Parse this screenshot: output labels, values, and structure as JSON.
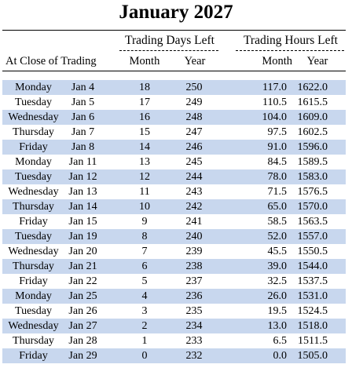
{
  "title": "January 2027",
  "group_days": "Trading Days Left",
  "group_hours": "Trading Hours Left",
  "row_label_header": "At Close of Trading",
  "col_month": "Month",
  "col_year": "Year",
  "rows": [
    {
      "day": "Monday",
      "date": "Jan 4",
      "days_month": "18",
      "days_year": "250",
      "hours_month": "117.0",
      "hours_year": "1622.0"
    },
    {
      "day": "Tuesday",
      "date": "Jan 5",
      "days_month": "17",
      "days_year": "249",
      "hours_month": "110.5",
      "hours_year": "1615.5"
    },
    {
      "day": "Wednesday",
      "date": "Jan 6",
      "days_month": "16",
      "days_year": "248",
      "hours_month": "104.0",
      "hours_year": "1609.0"
    },
    {
      "day": "Thursday",
      "date": "Jan 7",
      "days_month": "15",
      "days_year": "247",
      "hours_month": "97.5",
      "hours_year": "1602.5"
    },
    {
      "day": "Friday",
      "date": "Jan 8",
      "days_month": "14",
      "days_year": "246",
      "hours_month": "91.0",
      "hours_year": "1596.0"
    },
    {
      "day": "Monday",
      "date": "Jan 11",
      "days_month": "13",
      "days_year": "245",
      "hours_month": "84.5",
      "hours_year": "1589.5"
    },
    {
      "day": "Tuesday",
      "date": "Jan 12",
      "days_month": "12",
      "days_year": "244",
      "hours_month": "78.0",
      "hours_year": "1583.0"
    },
    {
      "day": "Wednesday",
      "date": "Jan 13",
      "days_month": "11",
      "days_year": "243",
      "hours_month": "71.5",
      "hours_year": "1576.5"
    },
    {
      "day": "Thursday",
      "date": "Jan 14",
      "days_month": "10",
      "days_year": "242",
      "hours_month": "65.0",
      "hours_year": "1570.0"
    },
    {
      "day": "Friday",
      "date": "Jan 15",
      "days_month": "9",
      "days_year": "241",
      "hours_month": "58.5",
      "hours_year": "1563.5"
    },
    {
      "day": "Tuesday",
      "date": "Jan 19",
      "days_month": "8",
      "days_year": "240",
      "hours_month": "52.0",
      "hours_year": "1557.0"
    },
    {
      "day": "Wednesday",
      "date": "Jan 20",
      "days_month": "7",
      "days_year": "239",
      "hours_month": "45.5",
      "hours_year": "1550.5"
    },
    {
      "day": "Thursday",
      "date": "Jan 21",
      "days_month": "6",
      "days_year": "238",
      "hours_month": "39.0",
      "hours_year": "1544.0"
    },
    {
      "day": "Friday",
      "date": "Jan 22",
      "days_month": "5",
      "days_year": "237",
      "hours_month": "32.5",
      "hours_year": "1537.5"
    },
    {
      "day": "Monday",
      "date": "Jan 25",
      "days_month": "4",
      "days_year": "236",
      "hours_month": "26.0",
      "hours_year": "1531.0"
    },
    {
      "day": "Tuesday",
      "date": "Jan 26",
      "days_month": "3",
      "days_year": "235",
      "hours_month": "19.5",
      "hours_year": "1524.5"
    },
    {
      "day": "Wednesday",
      "date": "Jan 27",
      "days_month": "2",
      "days_year": "234",
      "hours_month": "13.0",
      "hours_year": "1518.0"
    },
    {
      "day": "Thursday",
      "date": "Jan 28",
      "days_month": "1",
      "days_year": "233",
      "hours_month": "6.5",
      "hours_year": "1511.5"
    },
    {
      "day": "Friday",
      "date": "Jan 29",
      "days_month": "0",
      "days_year": "232",
      "hours_month": "0.0",
      "hours_year": "1505.0"
    }
  ]
}
